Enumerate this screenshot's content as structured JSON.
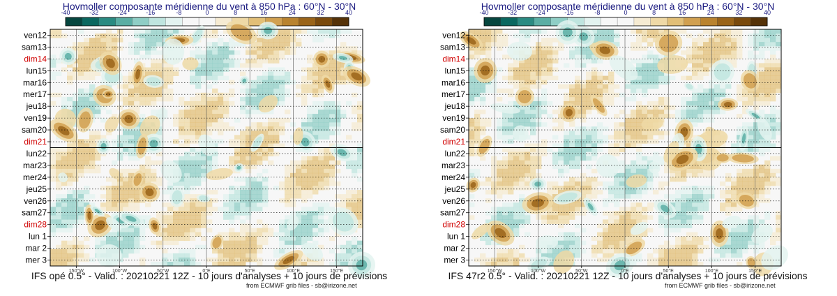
{
  "colors": {
    "palette": [
      "#06463f",
      "#0b6860",
      "#2a8b82",
      "#5aaea4",
      "#8fcec5",
      "#bfe5df",
      "#e3f3f0",
      "#f7f7f7",
      "#f7f7f7",
      "#f6ebd2",
      "#efd9a6",
      "#e2bf77",
      "#d1a050",
      "#b9832f",
      "#9a6419",
      "#7a4a0d",
      "#553208"
    ],
    "weekend": "#d00000",
    "weekday": "#000000"
  },
  "chart_data": [
    {
      "type": "heatmap",
      "title": "Hovmoller composante méridienne du vent à 850 hPa : 60°N - 30°N",
      "caption": "IFS opé 0.5° - Valid. : 20210221 12Z - 10 jours d'analyses + 10 jours de prévisions",
      "credit": "from ECMWF grib files - sb@irizone.net",
      "colorbar_ticks": [
        "-40",
        "-32",
        "-24",
        "-16",
        "-8",
        "0",
        "8",
        "16",
        "24",
        "32",
        "40"
      ],
      "colorbar_range": [
        -40,
        40
      ],
      "rows": [
        "ven12",
        "sam13",
        "dim14",
        "lun15",
        "mar16",
        "mer17",
        "jeu18",
        "ven19",
        "sam20",
        "dim21",
        "lun22",
        "mar23",
        "mer24",
        "jeu25",
        "ven26",
        "sam27",
        "dim28",
        "lun 1",
        "mar 2",
        "mer 3"
      ],
      "weekend_rows": [
        "dim14",
        "dim21",
        "dim28"
      ],
      "x_ticks": [
        "150°W",
        "100°W",
        "50°W",
        "0°E",
        "50°E",
        "100°E",
        "150°E"
      ],
      "x_tick_values": [
        -150,
        -100,
        -50,
        0,
        50,
        100,
        150
      ],
      "xlim": [
        -180,
        180
      ],
      "analysis_forecast_split": "lun22",
      "seed": 3
    },
    {
      "type": "heatmap",
      "title": "Hovmoller composante méridienne du vent à 850 hPa : 60°N - 30°N",
      "caption": "IFS 47r2 0.5° - Valid. : 20210221 12Z - 10 jours d'analyses + 10 jours de prévisions",
      "credit": "from ECMWF grib files - sb@irizone.net",
      "colorbar_ticks": [
        "-40",
        "-32",
        "-24",
        "-16",
        "-8",
        "0",
        "8",
        "16",
        "24",
        "32",
        "40"
      ],
      "colorbar_range": [
        -40,
        40
      ],
      "rows": [
        "ven12",
        "sam13",
        "dim14",
        "lun15",
        "mar16",
        "mer17",
        "jeu18",
        "ven19",
        "sam20",
        "dim21",
        "lun22",
        "mar23",
        "mer24",
        "jeu25",
        "ven26",
        "sam27",
        "dim28",
        "lun 1",
        "mar 2",
        "mer 3"
      ],
      "weekend_rows": [
        "dim14",
        "dim21",
        "dim28"
      ],
      "x_ticks": [
        "150°W",
        "100°W",
        "50°W",
        "0°E",
        "50°E",
        "100°E",
        "150°E"
      ],
      "x_tick_values": [
        -150,
        -100,
        -50,
        0,
        50,
        100,
        150
      ],
      "xlim": [
        -180,
        180
      ],
      "analysis_forecast_split": "lun22",
      "seed": 7
    }
  ]
}
